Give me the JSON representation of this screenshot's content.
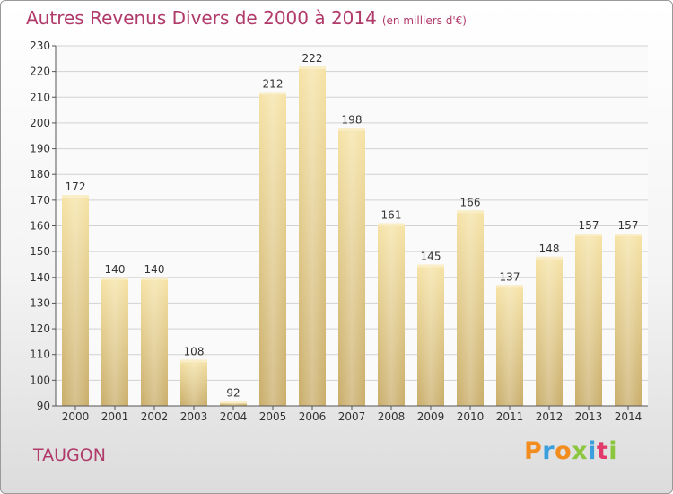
{
  "title": "Autres Revenus Divers de 2000 à 2014",
  "title_unit": "(en milliers d'€)",
  "commune": "TAUGON",
  "logo": {
    "text": "Proxiti",
    "colors": [
      "#f28c1e",
      "#3aa0dd",
      "#f28c1e",
      "#8cc63f",
      "#3aa0dd",
      "#e33a6c",
      "#8cc63f"
    ]
  },
  "chart_data": {
    "type": "bar",
    "categories": [
      "2000",
      "2001",
      "2002",
      "2003",
      "2004",
      "2005",
      "2006",
      "2007",
      "2008",
      "2009",
      "2010",
      "2011",
      "2012",
      "2013",
      "2014"
    ],
    "values": [
      172,
      140,
      140,
      108,
      92,
      212,
      222,
      198,
      161,
      145,
      166,
      137,
      148,
      157,
      157
    ],
    "ylim": [
      90,
      230
    ],
    "yticks": [
      90,
      100,
      110,
      120,
      130,
      140,
      150,
      160,
      170,
      180,
      190,
      200,
      210,
      220,
      230
    ],
    "grid": true,
    "bar_color": "#e3c97e"
  }
}
